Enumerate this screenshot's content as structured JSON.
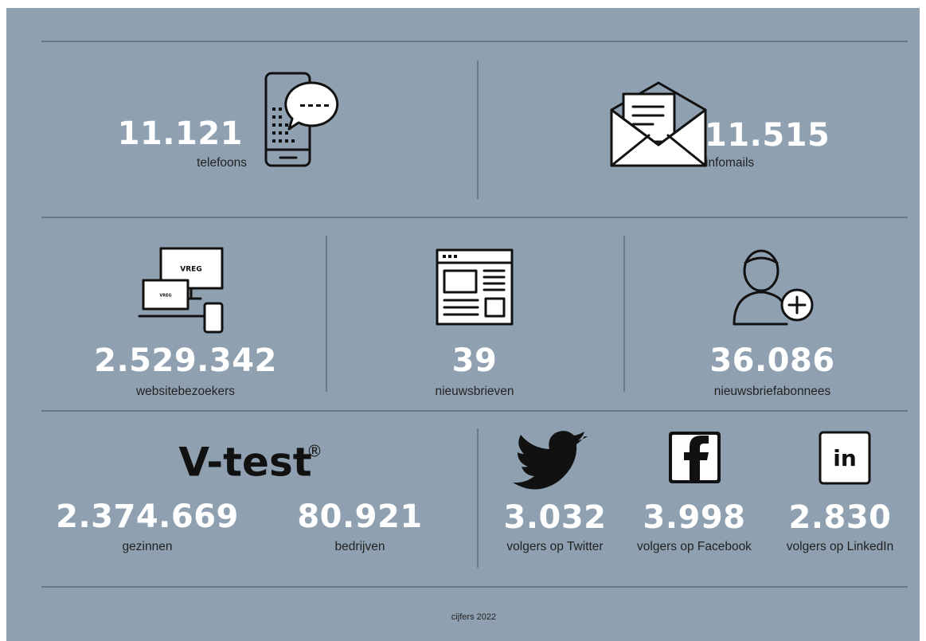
{
  "stats": {
    "telefoons": {
      "value": "11.121",
      "label": "telefoons"
    },
    "infomails": {
      "value": "11.515",
      "label": "infomails"
    },
    "websitebezoekers": {
      "value": "2.529.342",
      "label": "websitebezoekers",
      "logo": "VREG"
    },
    "nieuwsbrieven": {
      "value": "39",
      "label": "nieuwsbrieven"
    },
    "nieuwsbriefabonnees": {
      "value": "36.086",
      "label": "nieuwsbriefabonnees"
    },
    "vtest": {
      "title": "V-test",
      "mark": "®",
      "gezinnen": {
        "value": "2.374.669",
        "label": "gezinnen"
      },
      "bedrijven": {
        "value": "80.921",
        "label": "bedrijven"
      }
    },
    "twitter": {
      "value": "3.032",
      "label": "volgers op Twitter"
    },
    "facebook": {
      "value": "3.998",
      "label": "volgers op Facebook"
    },
    "linkedin": {
      "value": "2.830",
      "label": "volgers op LinkedIn",
      "logo": "in"
    }
  },
  "footer": "cijfers 2022"
}
